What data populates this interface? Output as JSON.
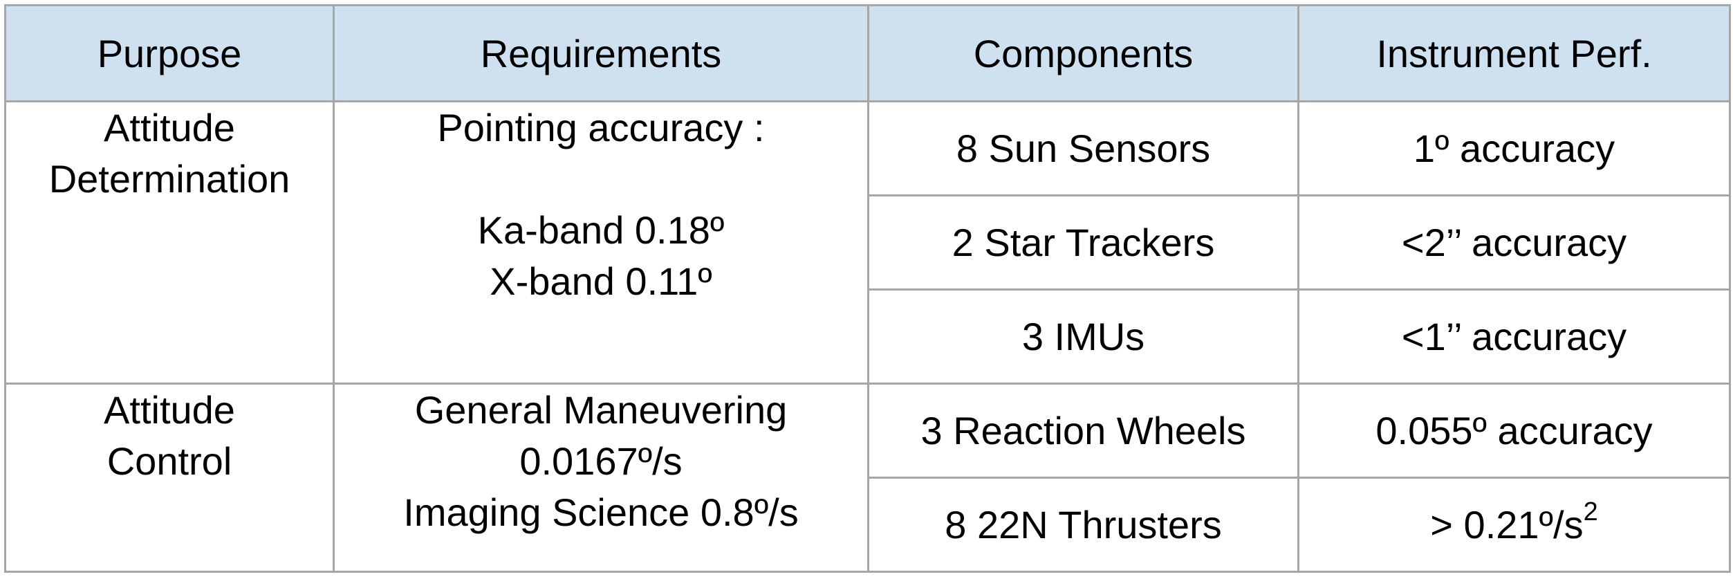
{
  "headers": {
    "purpose": "Purpose",
    "requirements": "Requirements",
    "components": "Components",
    "instrument_perf": "Instrument Perf."
  },
  "groups": [
    {
      "purpose_lines": [
        "Attitude",
        "Determination"
      ],
      "requirement_lines": [
        "Pointing accuracy :",
        "",
        "Ka-band 0.18º",
        "X-band 0.11º"
      ],
      "rows": [
        {
          "component": "8 Sun Sensors",
          "performance": "1º accuracy"
        },
        {
          "component": "2 Star Trackers",
          "performance": "<2’’ accuracy"
        },
        {
          "component": "3 IMUs",
          "performance": "<1’’ accuracy"
        }
      ]
    },
    {
      "purpose_lines": [
        "Attitude",
        "Control"
      ],
      "requirement_lines": [
        "General Maneuvering",
        "0.0167º/s",
        "Imaging Science 0.8º/s"
      ],
      "rows": [
        {
          "component": "3 Reaction Wheels",
          "performance": "0.055º accuracy"
        },
        {
          "component": "8 22N Thrusters",
          "performance_main": "> 0.21º/s",
          "performance_sup": "2"
        }
      ]
    }
  ]
}
